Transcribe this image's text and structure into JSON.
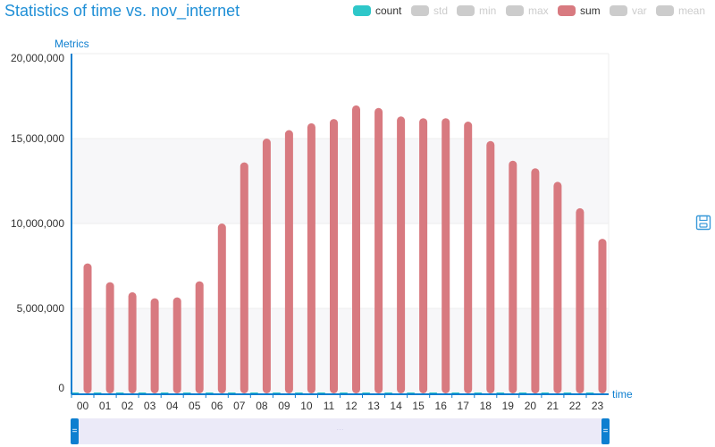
{
  "title": "Statistics of time vs. nov_internet",
  "legend": [
    {
      "label": "count",
      "color": "#2ec7c9",
      "active": true
    },
    {
      "label": "std",
      "color": "#cccccc",
      "active": false
    },
    {
      "label": "min",
      "color": "#cccccc",
      "active": false
    },
    {
      "label": "max",
      "color": "#cccccc",
      "active": false
    },
    {
      "label": "sum",
      "color": "#d87a80",
      "active": true
    },
    {
      "label": "var",
      "color": "#cccccc",
      "active": false
    },
    {
      "label": "mean",
      "color": "#cccccc",
      "active": false
    }
  ],
  "toolbox": {
    "save_icon": "save-icon"
  },
  "zoom": {
    "start_percent": 0,
    "end_percent": 100,
    "handle_glyph": "="
  },
  "chart_data": {
    "type": "bar",
    "title": "Statistics of time vs. nov_internet",
    "xlabel": "time",
    "ylabel": "Metrics",
    "categories": [
      "00",
      "01",
      "02",
      "03",
      "04",
      "05",
      "06",
      "07",
      "08",
      "09",
      "10",
      "11",
      "12",
      "13",
      "14",
      "15",
      "16",
      "17",
      "18",
      "19",
      "20",
      "21",
      "22",
      "23"
    ],
    "series": [
      {
        "name": "count",
        "color": "#2ec7c9",
        "values": [
          7000,
          6000,
          5500,
          5000,
          5000,
          6000,
          9000,
          12000,
          13500,
          14000,
          14500,
          14500,
          15000,
          15000,
          14500,
          14500,
          14500,
          14500,
          13500,
          12500,
          12000,
          11500,
          10000,
          8500
        ]
      },
      {
        "name": "sum",
        "color": "#d87a80",
        "values": [
          7650000,
          6550000,
          5950000,
          5600000,
          5650000,
          6600000,
          10000000,
          13600000,
          15000000,
          15500000,
          15900000,
          16150000,
          16950000,
          16800000,
          16300000,
          16200000,
          16200000,
          16000000,
          14850000,
          13700000,
          13250000,
          12450000,
          10900000,
          9100000
        ]
      }
    ],
    "yticks": [
      "0",
      "5,000,000",
      "10,000,000",
      "15,000,000",
      "20,000,000"
    ],
    "ylim": [
      0,
      20000000
    ],
    "grid": true,
    "legend_position": "top-right"
  }
}
